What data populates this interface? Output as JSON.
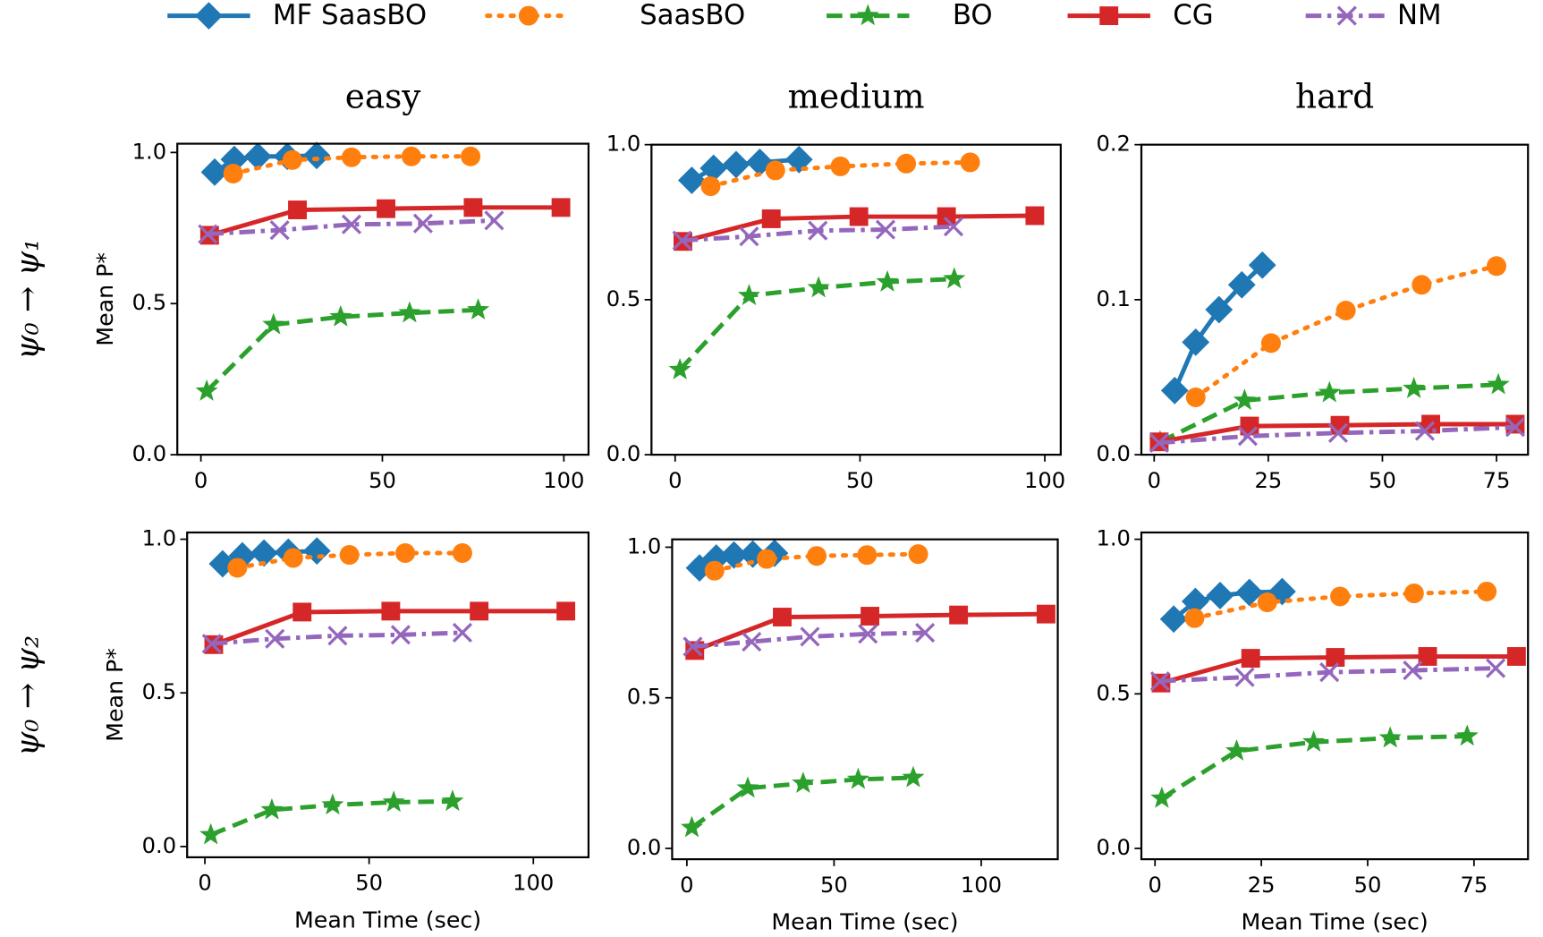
{
  "chart_data": [
    {
      "type": "line",
      "title": "easy",
      "y_label": "Mean P*",
      "legend": "top",
      "xlim": [
        -6.5,
        106.8
      ],
      "ylim": [
        0,
        1.029
      ],
      "xticks": [
        0,
        50,
        100
      ],
      "yticks": [
        {
          "value": 0,
          "label": "0.0"
        },
        {
          "value": 0.5,
          "label": "0.5"
        },
        {
          "value": 1,
          "label": "1.0"
        }
      ],
      "series": [
        {
          "name": "MF SaasBO",
          "color": "#1f77b4",
          "marker": "diamond",
          "dash": "solid",
          "x": [
            3.8,
            9.2,
            15.7,
            23.8,
            31.9
          ],
          "values": [
            0.935,
            0.977,
            0.987,
            0.987,
            0.99
          ]
        },
        {
          "name": "SaasBO",
          "color": "#ff7f0e",
          "marker": "circle",
          "dash": "dotted",
          "x": [
            8.9,
            25.2,
            41.5,
            58,
            74.3
          ],
          "values": [
            0.93,
            0.975,
            0.984,
            0.987,
            0.987
          ]
        },
        {
          "name": "BO",
          "color": "#2ca02c",
          "marker": "star",
          "dash": "dashed",
          "x": [
            1.6,
            20,
            38.5,
            57.5,
            76.4
          ],
          "values": [
            0.21,
            0.43,
            0.456,
            0.469,
            0.479
          ]
        },
        {
          "name": "CG",
          "color": "#d62728",
          "marker": "square",
          "dash": "solid",
          "x": [
            2.4,
            26.6,
            51,
            75,
            99.2
          ],
          "values": [
            0.726,
            0.81,
            0.814,
            0.818,
            0.818
          ]
        },
        {
          "name": "NM",
          "color": "#9467bd",
          "marker": "x",
          "dash": "dashdot",
          "x": [
            1.9,
            21.7,
            41.5,
            61.2,
            80.8
          ],
          "values": [
            0.73,
            0.743,
            0.762,
            0.765,
            0.775
          ]
        }
      ]
    },
    {
      "type": "line",
      "title": "medium",
      "xlim": [
        -6.4,
        104.3
      ],
      "ylim": [
        0,
        1.0
      ],
      "xticks": [
        0,
        50,
        100
      ],
      "yticks": [
        {
          "value": 0,
          "label": "0.0"
        },
        {
          "value": 0.5,
          "label": "0.5"
        },
        {
          "value": 1,
          "label": "1.0"
        }
      ],
      "series": [
        {
          "name": "MF SaasBO",
          "color": "#1f77b4",
          "marker": "diamond",
          "dash": "solid",
          "x": [
            4.5,
            10.4,
            16.5,
            22.9,
            33.5
          ],
          "values": [
            0.885,
            0.924,
            0.936,
            0.943,
            0.952
          ]
        },
        {
          "name": "SaasBO",
          "color": "#ff7f0e",
          "marker": "circle",
          "dash": "dotted",
          "x": [
            9.6,
            27.1,
            44.7,
            62.5,
            79.8
          ],
          "values": [
            0.866,
            0.917,
            0.93,
            0.939,
            0.943
          ]
        },
        {
          "name": "BO",
          "color": "#2ca02c",
          "marker": "star",
          "dash": "dashed",
          "x": [
            1.3,
            20,
            38.8,
            57.4,
            75.5
          ],
          "values": [
            0.274,
            0.513,
            0.538,
            0.557,
            0.567
          ]
        },
        {
          "name": "CG",
          "color": "#d62728",
          "marker": "square",
          "dash": "solid",
          "x": [
            2.1,
            26,
            49.7,
            73.4,
            97.3
          ],
          "values": [
            0.688,
            0.761,
            0.768,
            0.768,
            0.771
          ]
        },
        {
          "name": "NM",
          "color": "#9467bd",
          "marker": "x",
          "dash": "dashdot",
          "x": [
            1.9,
            20,
            38.6,
            56.9,
            75.3
          ],
          "values": [
            0.691,
            0.704,
            0.723,
            0.726,
            0.736
          ]
        }
      ]
    },
    {
      "type": "line",
      "title": "hard",
      "xlim": [
        -2.8,
        81.9
      ],
      "ylim": [
        0,
        0.2
      ],
      "xticks": [
        0,
        25,
        50,
        75
      ],
      "yticks": [
        {
          "value": 0,
          "label": "0.0"
        },
        {
          "value": 0.1,
          "label": "0.1"
        },
        {
          "value": 0.2,
          "label": "0.2"
        }
      ],
      "series": [
        {
          "name": "MF SaasBO",
          "color": "#1f77b4",
          "marker": "diamond",
          "dash": "solid",
          "x": [
            4.5,
            9.1,
            14.2,
            19.2,
            23.7
          ],
          "values": [
            0.0414,
            0.0726,
            0.0936,
            0.1096,
            0.1223
          ]
        },
        {
          "name": "SaasBO",
          "color": "#ff7f0e",
          "marker": "circle",
          "dash": "dotted",
          "x": [
            9.1,
            25.6,
            42,
            58.6,
            75
          ],
          "values": [
            0.037,
            0.072,
            0.093,
            0.1096,
            0.1217
          ]
        },
        {
          "name": "BO",
          "color": "#2ca02c",
          "marker": "star",
          "dash": "dashed",
          "x": [
            1.3,
            19.8,
            38.4,
            56.9,
            75.4
          ],
          "values": [
            0.0083,
            0.035,
            0.04,
            0.0427,
            0.0452
          ]
        },
        {
          "name": "CG",
          "color": "#d62728",
          "marker": "square",
          "dash": "solid",
          "x": [
            1.1,
            20.9,
            40.7,
            60.6,
            79.1
          ],
          "values": [
            0.0083,
            0.0185,
            0.019,
            0.0197,
            0.0197
          ]
        },
        {
          "name": "NM",
          "color": "#9467bd",
          "marker": "x",
          "dash": "dashdot",
          "x": [
            1.1,
            20.5,
            40.3,
            59.3,
            79.1
          ],
          "values": [
            0.0076,
            0.012,
            0.014,
            0.0153,
            0.0178
          ]
        }
      ]
    },
    {
      "type": "line",
      "y_label": "Mean P*",
      "x_label": "Mean Time (sec)",
      "xlim": [
        -5.4,
        116.8
      ],
      "ylim": [
        -0.035,
        1.022
      ],
      "xticks": [
        0,
        50,
        100
      ],
      "yticks": [
        {
          "value": 0,
          "label": "0.0"
        },
        {
          "value": 0.5,
          "label": "0.5"
        },
        {
          "value": 1,
          "label": "1.0"
        }
      ],
      "series": [
        {
          "name": "MF SaasBO",
          "color": "#1f77b4",
          "marker": "diamond",
          "dash": "solid",
          "x": [
            5.4,
            11.4,
            18,
            25.4,
            34.1
          ],
          "values": [
            0.92,
            0.946,
            0.955,
            0.958,
            0.962
          ]
        },
        {
          "name": "SaasBO",
          "color": "#ff7f0e",
          "marker": "circle",
          "dash": "dotted",
          "x": [
            9.9,
            26.9,
            44,
            61,
            78.4
          ],
          "values": [
            0.907,
            0.939,
            0.949,
            0.955,
            0.955
          ]
        },
        {
          "name": "BO",
          "color": "#2ca02c",
          "marker": "star",
          "dash": "dashed",
          "x": [
            1.8,
            20.4,
            38.9,
            57.5,
            75.4
          ],
          "values": [
            0.038,
            0.119,
            0.135,
            0.144,
            0.147
          ]
        },
        {
          "name": "CG",
          "color": "#d62728",
          "marker": "square",
          "dash": "solid",
          "x": [
            2.7,
            29.6,
            56.6,
            83.5,
            109.9
          ],
          "values": [
            0.657,
            0.763,
            0.766,
            0.766,
            0.766
          ]
        },
        {
          "name": "NM",
          "color": "#9467bd",
          "marker": "x",
          "dash": "dashdot",
          "x": [
            2.1,
            21.3,
            40.4,
            59.6,
            78.4
          ],
          "values": [
            0.66,
            0.676,
            0.686,
            0.689,
            0.696
          ]
        }
      ]
    },
    {
      "type": "line",
      "x_label": "Mean Time (sec)",
      "xlim": [
        -5,
        126
      ],
      "ylim": [
        -0.036,
        1.026
      ],
      "xticks": [
        0,
        50,
        100
      ],
      "yticks": [
        {
          "value": 0,
          "label": "0.0"
        },
        {
          "value": 0.5,
          "label": "0.5"
        },
        {
          "value": 1,
          "label": "1.0"
        }
      ],
      "series": [
        {
          "name": "MF SaasBO",
          "color": "#1f77b4",
          "marker": "diamond",
          "dash": "solid",
          "x": [
            4.3,
            10,
            16,
            22.4,
            29.8
          ],
          "values": [
            0.931,
            0.964,
            0.974,
            0.977,
            0.98
          ]
        },
        {
          "name": "SaasBO",
          "color": "#ff7f0e",
          "marker": "circle",
          "dash": "dotted",
          "x": [
            9.4,
            27.1,
            44.1,
            61.2,
            78.6
          ],
          "values": [
            0.922,
            0.961,
            0.971,
            0.974,
            0.977
          ]
        },
        {
          "name": "BO",
          "color": "#2ca02c",
          "marker": "star",
          "dash": "dashed",
          "x": [
            1.7,
            20.7,
            39.5,
            58.2,
            76.9
          ],
          "values": [
            0.069,
            0.2,
            0.216,
            0.229,
            0.235
          ]
        },
        {
          "name": "CG",
          "color": "#d62728",
          "marker": "square",
          "dash": "solid",
          "x": [
            2.7,
            32.4,
            62.2,
            92.3,
            122
          ],
          "values": [
            0.657,
            0.768,
            0.771,
            0.775,
            0.778
          ]
        },
        {
          "name": "NM",
          "color": "#9467bd",
          "marker": "x",
          "dash": "dashdot",
          "x": [
            2,
            22,
            41.8,
            61.5,
            80.9
          ],
          "values": [
            0.67,
            0.686,
            0.703,
            0.712,
            0.716
          ]
        }
      ]
    },
    {
      "type": "line",
      "x_label": "Mean Time (sec)",
      "xlim": [
        -3.2,
        87.7
      ],
      "ylim": [
        -0.035,
        1.022
      ],
      "xticks": [
        0,
        25,
        50,
        75
      ],
      "yticks": [
        {
          "value": 0,
          "label": "0.0"
        },
        {
          "value": 0.5,
          "label": "0.5"
        },
        {
          "value": 1,
          "label": "1.0"
        }
      ],
      "series": [
        {
          "name": "MF SaasBO",
          "color": "#1f77b4",
          "marker": "diamond",
          "dash": "solid",
          "x": [
            4.4,
            9.5,
            15.3,
            22.2,
            29.9
          ],
          "values": [
            0.742,
            0.799,
            0.818,
            0.828,
            0.831
          ]
        },
        {
          "name": "SaasBO",
          "color": "#ff7f0e",
          "marker": "circle",
          "dash": "dotted",
          "x": [
            9.3,
            26.4,
            43.5,
            60.9,
            78
          ],
          "values": [
            0.745,
            0.796,
            0.815,
            0.825,
            0.831
          ]
        },
        {
          "name": "BO",
          "color": "#2ca02c",
          "marker": "star",
          "dash": "dashed",
          "x": [
            1.6,
            19.2,
            37.3,
            55.3,
            73.4
          ],
          "values": [
            0.162,
            0.315,
            0.344,
            0.357,
            0.363
          ]
        },
        {
          "name": "CG",
          "color": "#d62728",
          "marker": "square",
          "dash": "solid",
          "x": [
            1.4,
            22.5,
            42.4,
            64.1,
            85
          ],
          "values": [
            0.535,
            0.615,
            0.618,
            0.621,
            0.621
          ]
        },
        {
          "name": "NM",
          "color": "#9467bd",
          "marker": "x",
          "dash": "dashdot",
          "x": [
            1.2,
            21.1,
            41,
            60.6,
            80.1
          ],
          "values": [
            0.541,
            0.554,
            0.57,
            0.576,
            0.583
          ]
        }
      ]
    }
  ],
  "row_labels": [
    "ψ₀ → ψ₁",
    "ψ₀ → ψ₂"
  ]
}
